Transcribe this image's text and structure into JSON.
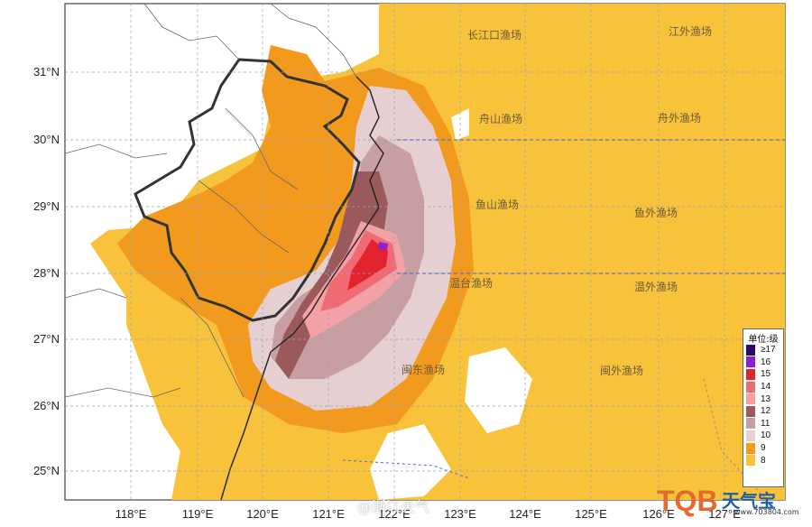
{
  "map": {
    "x_ticks": [
      "118°E",
      "119°E",
      "120°E",
      "121°E",
      "122°E",
      "123°E",
      "124°E",
      "125°E",
      "126°E",
      "127°E"
    ],
    "y_ticks": [
      "31°N",
      "30°N",
      "29°N",
      "28°N",
      "27°N",
      "26°N",
      "25°N"
    ],
    "zones": [
      "长江口渔场",
      "江外渔场",
      "舟山渔场",
      "舟外渔场",
      "鱼山渔场",
      "鱼外渔场",
      "温台渔场",
      "温外渔场",
      "闽东渔场",
      "闽外渔场"
    ],
    "colors": {
      "level8": "#f8c23b",
      "level9": "#f29a1e",
      "level10": "#e5cfd0",
      "level11": "#c79fa3",
      "level12": "#9a5a5c",
      "level13": "#f2a1a6",
      "level14": "#ef6a72",
      "level15": "#e2222c",
      "level16": "#8a1fd6",
      "level17": "#2a0a6e",
      "land": "#ffffff",
      "sea": "#ffffff",
      "grid": "#9aa0b8"
    }
  },
  "legend": {
    "title": "单位:级",
    "items": [
      {
        "label": "≥17",
        "color": "#2a0a6e"
      },
      {
        "label": "16",
        "color": "#8a1fd6"
      },
      {
        "label": "15",
        "color": "#e2222c"
      },
      {
        "label": "14",
        "color": "#ef6a72"
      },
      {
        "label": "13",
        "color": "#f2a1a6"
      },
      {
        "label": "12",
        "color": "#9a5a5c"
      },
      {
        "label": "11",
        "color": "#c79fa3"
      },
      {
        "label": "10",
        "color": "#e5cfd0"
      },
      {
        "label": "9",
        "color": "#f29a1e"
      },
      {
        "label": "8",
        "color": "#f8c23b"
      }
    ]
  },
  "watermark": "@浙江天气",
  "logo": {
    "mark": "TQB",
    "name": "天气宝",
    "url": "www.703804.com"
  }
}
